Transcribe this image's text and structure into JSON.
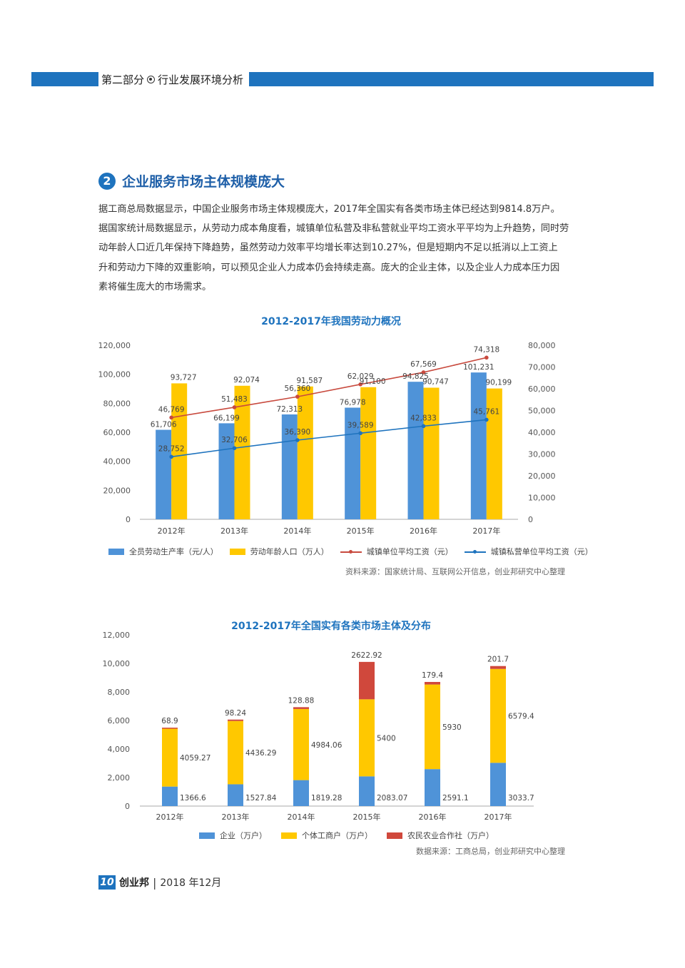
{
  "header": {
    "part": "第二部分",
    "title": "行业发展环境分析"
  },
  "section": {
    "number": "2",
    "title": "企业服务市场主体规模庞大"
  },
  "body_text": "据工商总局数据显示，中国企业服务市场主体规模庞大，2017年全国实有各类市场主体已经达到9814.8万户。\n据国家统计局数据显示，从劳动力成本角度看，城镇单位私营及非私营就业平均工资水平平均为上升趋势，同时劳\n动年龄人口近几年保持下降趋势，虽然劳动力效率平均增长率达到10.27%，但是短期内不足以抵消以上工资上\n升和劳动力下降的双重影响，可以预见企业人力成本仍会持续走高。庞大的企业主体，以及企业人力成本压力因\n素将催生庞大的市场需求。",
  "chart1_source": "资料来源：国家统计局、互联网公开信息，创业邦研究中心整理",
  "chart2_source": "数据来源：工商总局，创业邦研究中心整理",
  "footer": {
    "page": "10",
    "brand": "创业邦",
    "date": "2018 年12月"
  },
  "colors": {
    "blue": "#4f93d8",
    "yellow": "#ffc800",
    "red": "#d0483c",
    "line_red": "#c84a3e",
    "line_blue": "#1e73be",
    "title": "#1e73be"
  },
  "chart_data": [
    {
      "type": "bar",
      "title": "2012-2017年我国劳动力概况",
      "categories": [
        "2012年",
        "2013年",
        "2014年",
        "2015年",
        "2016年",
        "2017年"
      ],
      "y_left": {
        "range": [
          0,
          120000
        ],
        "ticks": [
          "0",
          "20,000",
          "40,000",
          "60,000",
          "80,000",
          "100,000",
          "120,000"
        ]
      },
      "y_right": {
        "range": [
          0,
          80000
        ],
        "ticks": [
          "0",
          "10,000",
          "20,000",
          "30,000",
          "40,000",
          "50,000",
          "60,000",
          "70,000",
          "80,000"
        ]
      },
      "series": [
        {
          "name": "全员劳动生产率（元/人）",
          "kind": "bar",
          "axis": "left",
          "color": "#4f93d8",
          "values": [
            61706,
            66199,
            72313,
            76978,
            94825,
            101231
          ],
          "labels": [
            "61,706",
            "66,199",
            "72,313",
            "76,978",
            "94,825",
            "101,231"
          ]
        },
        {
          "name": "劳动年龄人口（万人）",
          "kind": "bar",
          "axis": "left",
          "color": "#ffc800",
          "values": [
            93727,
            92074,
            91587,
            91100,
            90747,
            90199
          ],
          "labels": [
            "93,727",
            "92,074",
            "91,587",
            "91,100",
            "90,747",
            "90,199"
          ]
        },
        {
          "name": "城镇单位平均工资（元）",
          "kind": "line",
          "axis": "right",
          "color": "#c84a3e",
          "values": [
            46769,
            51483,
            56360,
            62029,
            67569,
            74318
          ],
          "labels": [
            "46,769",
            "51,483",
            "56,360",
            "62,029",
            "67,569",
            "74,318"
          ]
        },
        {
          "name": "城镇私营单位平均工资（元）",
          "kind": "line",
          "axis": "right",
          "color": "#1e73be",
          "values": [
            28752,
            32706,
            36390,
            39589,
            42833,
            45761
          ],
          "labels": [
            "28,752",
            "32,706",
            "36,390",
            "39,589",
            "42,833",
            "45,761"
          ]
        }
      ]
    },
    {
      "type": "bar",
      "stacked": true,
      "title": "2012-2017年全国实有各类市场主体及分布",
      "categories": [
        "2012年",
        "2013年",
        "2014年",
        "2015年",
        "2016年",
        "2017年"
      ],
      "y": {
        "range": [
          0,
          12000
        ],
        "ticks": [
          "0",
          "2,000",
          "4,000",
          "6,000",
          "8,000",
          "10,000",
          "12,000"
        ]
      },
      "series": [
        {
          "name": "企业（万户）",
          "color": "#4f93d8",
          "values": [
            1366.6,
            1527.84,
            1819.28,
            2083.07,
            2591.1,
            3033.7
          ],
          "labels": [
            "1366.6",
            "1527.84",
            "1819.28",
            "2083.07",
            "2591.1",
            "3033.7"
          ]
        },
        {
          "name": "个体工商户（万户）",
          "color": "#ffc800",
          "values": [
            4059.27,
            4436.29,
            4984.06,
            5400,
            5930,
            6579.4
          ],
          "labels": [
            "4059.27",
            "4436.29",
            "4984.06",
            "5400",
            "5930",
            "6579.4"
          ]
        },
        {
          "name": "农民农业合作社（万户）",
          "color": "#d0483c",
          "values": [
            68.9,
            98.24,
            128.88,
            2622.92,
            179.4,
            201.7
          ],
          "labels": [
            "68.9",
            "98.24",
            "128.88",
            "2622.92",
            "179.4",
            "201.7"
          ]
        }
      ]
    }
  ]
}
